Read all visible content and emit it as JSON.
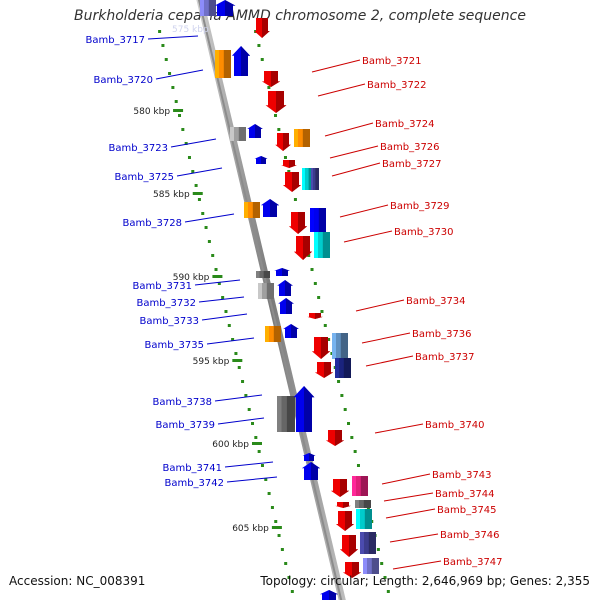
{
  "title": "Burkholderia cepacia AMMD chromosome 2, complete sequence",
  "accession": "Accession: NC_008391",
  "topology": "Topology: circular; Length: 2,646,969 bp; Genes: 2,355",
  "colors": {
    "backbone": "#8c8c8c",
    "forward_label": "#0000cc",
    "reverse_label": "#cc0000",
    "tick": "#2a8a1a",
    "forward_gene": "#0000ee",
    "reverse_gene": "#ee0000",
    "orange_gene": "#ff8c00",
    "grey_gene": "#a0a0a0",
    "dark_grey_gene": "#666666",
    "cyan_gene": "#00cccc",
    "steel_gene": "#5f8fbf",
    "navy_gene": "#1a237e",
    "purple_gene": "#3c3c8c",
    "magenta_gene": "#e0207a",
    "lavender_gene": "#7070c8"
  },
  "scale_labels": [
    "580 kbp",
    "585 kbp",
    "590 kbp",
    "595 kbp",
    "600 kbp",
    "605 kbp"
  ],
  "forward_labels": [
    "Bamb_3717",
    "Bamb_3720",
    "Bamb_3723",
    "Bamb_3725",
    "Bamb_3728",
    "Bamb_3731",
    "Bamb_3732",
    "Bamb_3733",
    "Bamb_3735",
    "Bamb_3738",
    "Bamb_3739",
    "Bamb_3741",
    "Bamb_3742"
  ],
  "reverse_labels": [
    "Bamb_3721",
    "Bamb_3722",
    "Bamb_3724",
    "Bamb_3726",
    "Bamb_3727",
    "Bamb_3729",
    "Bamb_3730",
    "Bamb_3734",
    "Bamb_3736",
    "Bamb_3737",
    "Bamb_3740",
    "Bamb_3743",
    "Bamb_3744",
    "Bamb_3745",
    "Bamb_3746",
    "Bamb_3747"
  ],
  "faint_label": "575 kbp"
}
